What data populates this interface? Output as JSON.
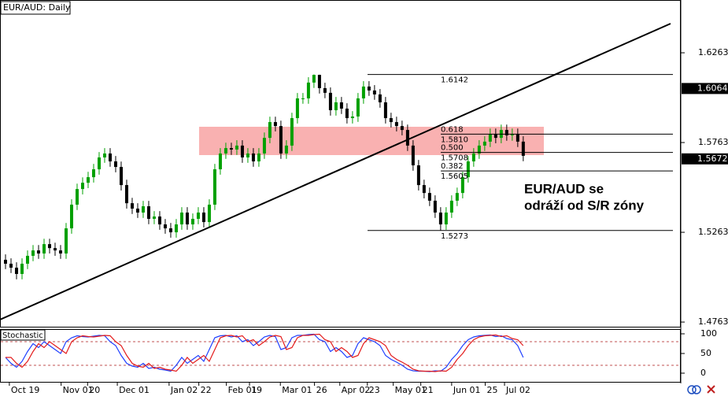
{
  "chart_data": [
    {
      "type": "candlestick",
      "title": "EUR/AUD: Daily",
      "xlim": [
        -1,
        122.6
      ],
      "ylim": [
        1.4737,
        1.6557
      ],
      "yticks": [
        1.6263,
        1.5763,
        1.5263,
        1.4763
      ],
      "xticks": [
        {
          "value": 0.7,
          "label": "Oct 19"
        },
        {
          "value": 10.1,
          "label": "Nov 01"
        },
        {
          "value": 14.9,
          "label": "20"
        },
        {
          "value": 20.3,
          "label": "Dec 01"
        },
        {
          "value": 29.7,
          "label": "Jan 02"
        },
        {
          "value": 35.1,
          "label": "22"
        },
        {
          "value": 40.1,
          "label": "Feb 01"
        },
        {
          "value": 44.3,
          "label": "19"
        },
        {
          "value": 49.9,
          "label": "Mar 01"
        },
        {
          "value": 56.1,
          "label": "26"
        },
        {
          "value": 60.7,
          "label": "Apr 02"
        },
        {
          "value": 65.7,
          "label": "23"
        },
        {
          "value": 70.4,
          "label": "May 01"
        },
        {
          "value": 75.4,
          "label": "21"
        },
        {
          "value": 81,
          "label": "Jun 01"
        },
        {
          "value": 87.1,
          "label": "25"
        },
        {
          "value": 90.6,
          "label": "Jul 02"
        }
      ],
      "series": [
        {
          "color_up": "#00a000",
          "color_down": "#000000",
          "open": [
            1.511,
            1.5088,
            1.5066,
            1.5031,
            1.5088,
            1.5132,
            1.5162,
            1.5145,
            1.5197,
            1.5175,
            1.5162,
            1.5145,
            1.5285,
            1.5417,
            1.5504,
            1.5539,
            1.557,
            1.5614,
            1.568,
            1.5702,
            1.5658,
            1.5627,
            1.5526,
            1.5425,
            1.5395,
            1.5373,
            1.5408,
            1.5338,
            1.5351,
            1.5307,
            1.5285,
            1.5263,
            1.5307,
            1.5373,
            1.5307,
            1.5338,
            1.5373,
            1.532,
            1.5417,
            1.5614,
            1.5702,
            1.5732,
            1.5724,
            1.5746,
            1.568,
            1.5702,
            1.5658,
            1.5702,
            1.5789,
            1.5877,
            1.5855,
            1.5702,
            1.5746,
            1.5899,
            1.6009,
            1.6009,
            1.6097,
            1.614,
            1.6066,
            1.604,
            1.5943,
            1.5987,
            1.5952,
            1.5899,
            1.5908,
            1.6009,
            1.6075,
            1.6053,
            1.6031,
            1.5987,
            1.5899,
            1.5877,
            1.5855,
            1.5833,
            1.5746,
            1.5636,
            1.5526,
            1.5482,
            1.5439,
            1.5373,
            1.5307,
            1.5373,
            1.5439,
            1.5482,
            1.557,
            1.5658,
            1.5702,
            1.5746,
            1.5768,
            1.5811,
            1.5789,
            1.5833,
            1.5803,
            1.5811,
            1.5768
          ],
          "high": [
            1.514,
            1.5118,
            1.5096,
            1.5118,
            1.5162,
            1.5192,
            1.5192,
            1.5227,
            1.5227,
            1.5205,
            1.5192,
            1.5315,
            1.5447,
            1.5534,
            1.5569,
            1.56,
            1.5644,
            1.571,
            1.5732,
            1.5732,
            1.5688,
            1.5657,
            1.5556,
            1.5455,
            1.5425,
            1.5438,
            1.5438,
            1.5381,
            1.5381,
            1.5337,
            1.5315,
            1.5337,
            1.5403,
            1.5403,
            1.5368,
            1.5403,
            1.5403,
            1.5447,
            1.5644,
            1.5732,
            1.5762,
            1.5762,
            1.5776,
            1.5776,
            1.5732,
            1.5732,
            1.5732,
            1.5819,
            1.5907,
            1.5907,
            1.5885,
            1.5776,
            1.5929,
            1.6039,
            1.6039,
            1.6127,
            1.6142,
            1.6141,
            1.6096,
            1.607,
            1.6017,
            1.6017,
            1.5982,
            1.5938,
            1.6039,
            1.6105,
            1.6105,
            1.6083,
            1.6061,
            1.6017,
            1.5929,
            1.5907,
            1.5885,
            1.5863,
            1.5776,
            1.5666,
            1.5556,
            1.5512,
            1.5469,
            1.5403,
            1.5403,
            1.5469,
            1.5512,
            1.56,
            1.5688,
            1.5732,
            1.5776,
            1.5798,
            1.5841,
            1.5841,
            1.5863,
            1.5863,
            1.5841,
            1.5841,
            1.5798
          ],
          "low": [
            1.5058,
            1.5036,
            1.5001,
            1.5001,
            1.5058,
            1.5102,
            1.5115,
            1.5115,
            1.5145,
            1.5132,
            1.5115,
            1.5115,
            1.5255,
            1.5387,
            1.5474,
            1.5509,
            1.554,
            1.5584,
            1.565,
            1.5628,
            1.5597,
            1.5496,
            1.5395,
            1.5365,
            1.5343,
            1.5343,
            1.5308,
            1.5308,
            1.5277,
            1.5255,
            1.5233,
            1.5233,
            1.5277,
            1.5277,
            1.5277,
            1.5308,
            1.529,
            1.529,
            1.5387,
            1.5584,
            1.5672,
            1.5694,
            1.5694,
            1.565,
            1.565,
            1.5628,
            1.5628,
            1.5672,
            1.5759,
            1.5825,
            1.5672,
            1.5672,
            1.5716,
            1.5869,
            1.5979,
            1.5979,
            1.6067,
            1.6036,
            1.601,
            1.5913,
            1.5913,
            1.5922,
            1.5869,
            1.5869,
            1.5878,
            1.5979,
            1.6023,
            1.6001,
            1.5957,
            1.5869,
            1.5847,
            1.5825,
            1.5803,
            1.5716,
            1.5606,
            1.5496,
            1.5452,
            1.5409,
            1.5343,
            1.5273,
            1.5277,
            1.5343,
            1.5409,
            1.5452,
            1.554,
            1.5628,
            1.5672,
            1.5716,
            1.5738,
            1.5759,
            1.5759,
            1.5773,
            1.5773,
            1.5738,
            1.5659
          ],
          "close": [
            1.5088,
            1.5066,
            1.5031,
            1.5088,
            1.5132,
            1.5162,
            1.5145,
            1.5197,
            1.5175,
            1.5162,
            1.5145,
            1.5285,
            1.5417,
            1.5504,
            1.5539,
            1.557,
            1.5614,
            1.568,
            1.5702,
            1.5658,
            1.5627,
            1.5526,
            1.5425,
            1.5395,
            1.5373,
            1.5408,
            1.5338,
            1.5351,
            1.5307,
            1.5285,
            1.5263,
            1.5307,
            1.5373,
            1.5307,
            1.5338,
            1.5373,
            1.532,
            1.5417,
            1.5614,
            1.5702,
            1.5732,
            1.5724,
            1.5746,
            1.568,
            1.5702,
            1.5658,
            1.5702,
            1.5789,
            1.5877,
            1.5855,
            1.5702,
            1.5746,
            1.5899,
            1.6009,
            1.6009,
            1.6097,
            1.614,
            1.6066,
            1.604,
            1.5943,
            1.5987,
            1.5952,
            1.5899,
            1.5908,
            1.6009,
            1.6075,
            1.6053,
            1.6031,
            1.5987,
            1.5899,
            1.5877,
            1.5855,
            1.5833,
            1.5746,
            1.5636,
            1.5526,
            1.5482,
            1.5439,
            1.5373,
            1.5307,
            1.5373,
            1.5439,
            1.5482,
            1.557,
            1.5658,
            1.5702,
            1.5746,
            1.5768,
            1.5811,
            1.5789,
            1.5833,
            1.5803,
            1.5811,
            1.5768,
            1.5689
          ]
        }
      ],
      "price_markers": [
        1.6064,
        1.5672
      ],
      "fibonacci": [
        {
          "price": 1.6142
        },
        {
          "ratio": 0.618,
          "price": {
            "value": 1.581,
            "label": "1.5810"
          }
        },
        {
          "ratio": {
            "value": 0.5,
            "label": "0.500"
          },
          "price": 1.5708
        },
        {
          "ratio": 0.382,
          "price": 1.5605
        },
        {
          "price": 1.5273
        }
      ],
      "annotations": [
        "EUR/AUD se",
        "odráží od S/R zóny"
      ]
    },
    {
      "type": "line",
      "title": "Stochastic",
      "ylim": [
        -24,
        112
      ],
      "yticks": [
        100,
        50,
        0
      ],
      "levels": [
        80,
        20
      ],
      "series": [
        {
          "color": "#1f3fff",
          "values": [
            40,
            25,
            15,
            30,
            55,
            75,
            65,
            80,
            70,
            60,
            50,
            80,
            90,
            95,
            93,
            92,
            94,
            96,
            95,
            80,
            70,
            45,
            25,
            18,
            15,
            25,
            12,
            15,
            10,
            8,
            5,
            20,
            40,
            25,
            35,
            45,
            30,
            60,
            90,
            95,
            96,
            92,
            95,
            80,
            85,
            70,
            80,
            92,
            96,
            93,
            60,
            65,
            90,
            96,
            96,
            98,
            99,
            85,
            80,
            55,
            65,
            55,
            40,
            45,
            75,
            90,
            85,
            80,
            70,
            45,
            35,
            28,
            20,
            10,
            6,
            5,
            5,
            4,
            6,
            5,
            15,
            35,
            50,
            70,
            85,
            92,
            95,
            96,
            97,
            93,
            95,
            88,
            85,
            70,
            40
          ]
        },
        {
          "color": "#e31a1a",
          "values": [
            40,
            40,
            25,
            15,
            30,
            55,
            75,
            65,
            80,
            70,
            60,
            50,
            80,
            90,
            95,
            93,
            92,
            94,
            96,
            95,
            80,
            70,
            45,
            25,
            18,
            15,
            25,
            12,
            15,
            10,
            8,
            5,
            20,
            40,
            25,
            35,
            45,
            30,
            60,
            90,
            95,
            96,
            92,
            95,
            80,
            85,
            70,
            80,
            92,
            96,
            93,
            60,
            65,
            90,
            96,
            96,
            98,
            99,
            85,
            80,
            55,
            65,
            55,
            40,
            45,
            75,
            90,
            85,
            80,
            70,
            45,
            35,
            28,
            20,
            10,
            6,
            5,
            5,
            4,
            6,
            5,
            15,
            35,
            50,
            70,
            85,
            92,
            95,
            96,
            97,
            93,
            95,
            88,
            85,
            70
          ]
        }
      ]
    }
  ]
}
